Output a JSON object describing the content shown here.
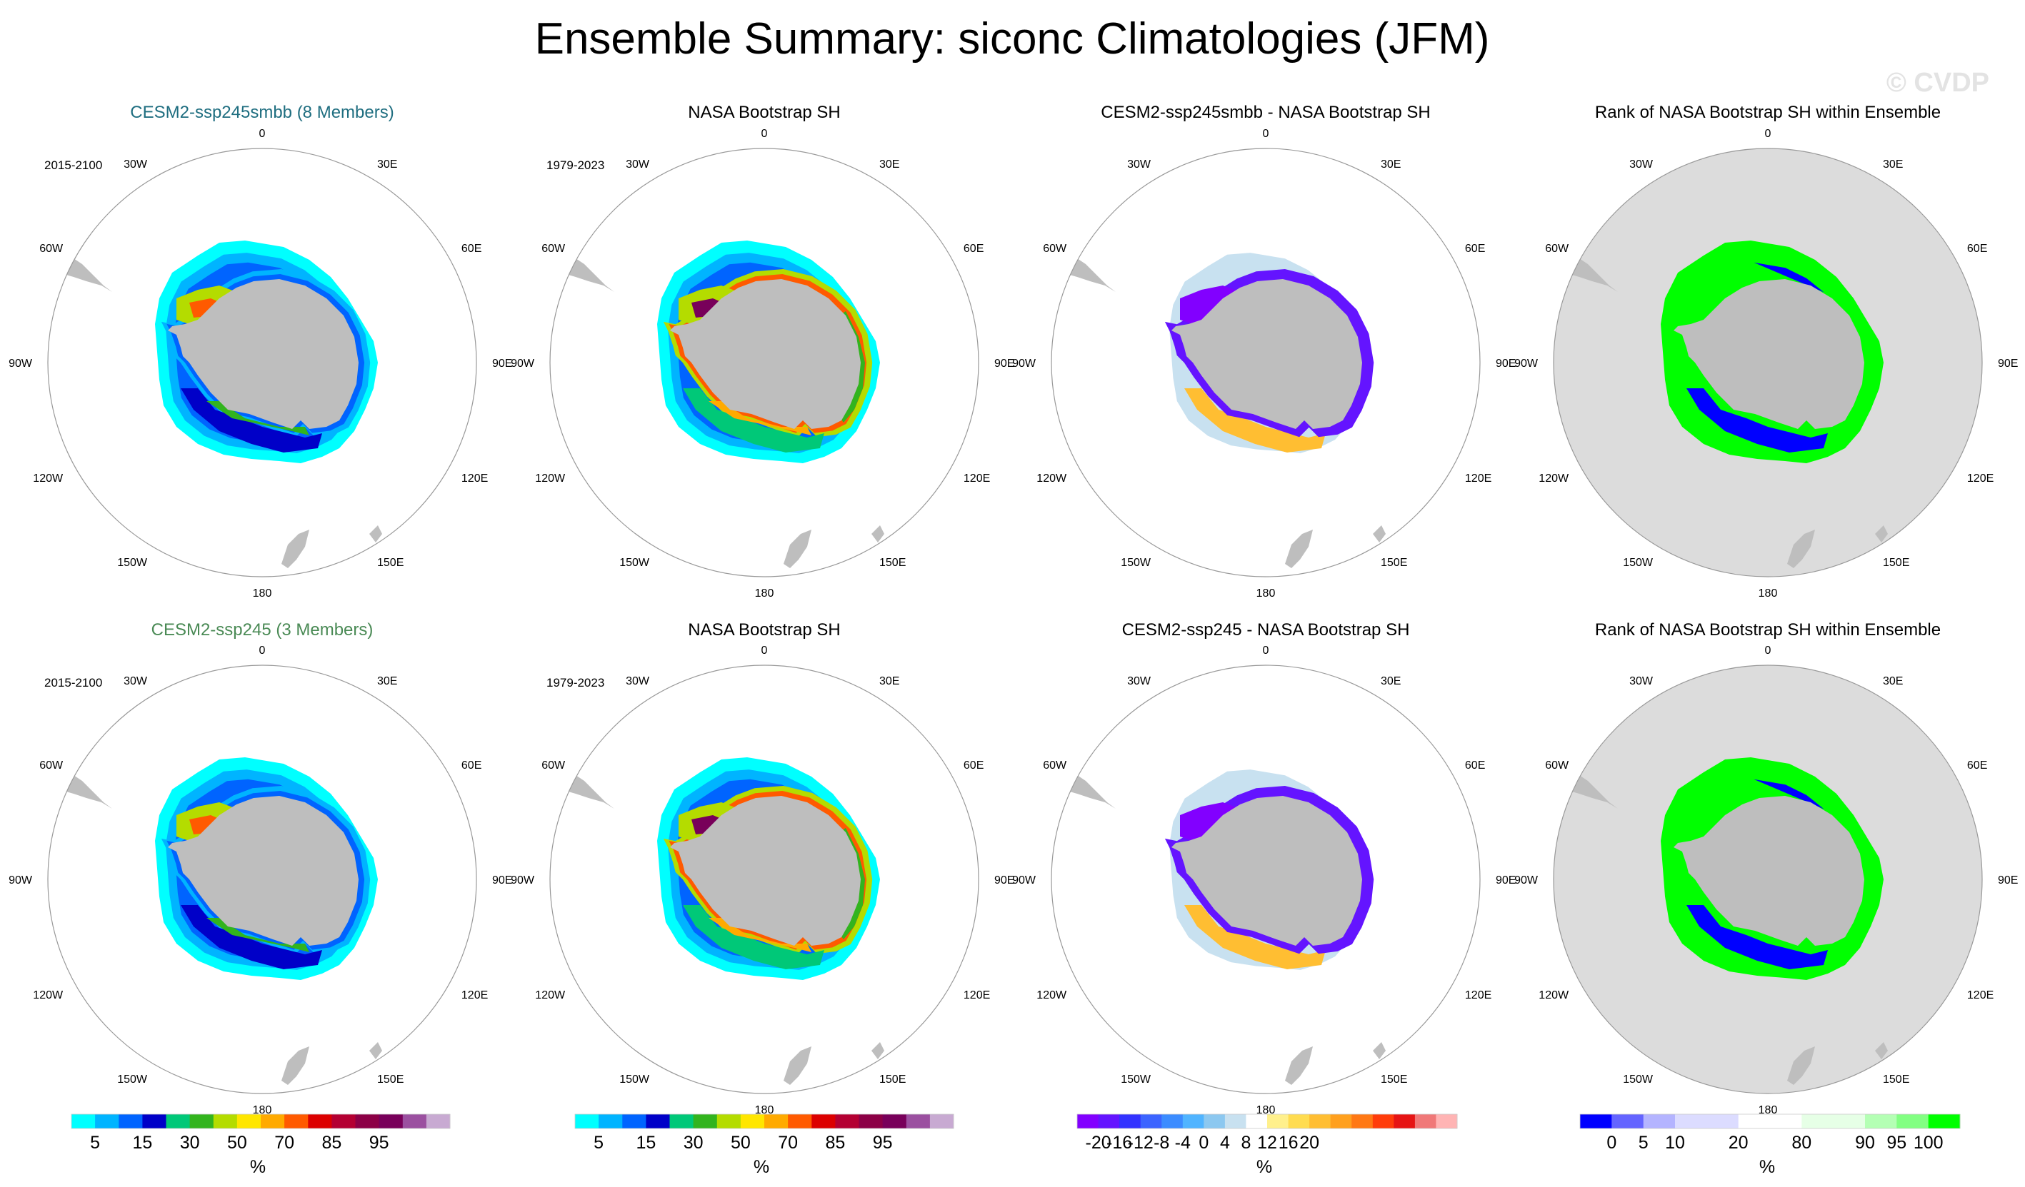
{
  "title": "Ensemble Summary: siconc Climatologies (JFM)",
  "watermark": "© CVDP",
  "colors": {
    "land": "#bebebe",
    "rank_background": "#dcdcdc",
    "title_ssp245smbb": "#1f6e80",
    "title_ssp245": "#4a8a55",
    "title_default": "#000000"
  },
  "chart_data": {
    "type": "polar-map",
    "longitude_labels": [
      "0",
      "30E",
      "60E",
      "90E",
      "120E",
      "150E",
      "180",
      "150W",
      "120W",
      "90W",
      "60W",
      "30W"
    ],
    "panels": [
      {
        "id": "r1c1",
        "title": "CESM2-ssp245smbb (8 Members)",
        "title_color": "title_ssp245smbb",
        "period": "2015-2100",
        "kind": "conc",
        "variant": "model_a"
      },
      {
        "id": "r1c2",
        "title": "NASA Bootstrap SH",
        "title_color": "title_default",
        "period": "1979-2023",
        "kind": "conc",
        "variant": "obs"
      },
      {
        "id": "r1c3",
        "title": "CESM2-ssp245smbb - NASA Bootstrap SH",
        "title_color": "title_default",
        "period": "",
        "kind": "diff",
        "variant": "diff_a"
      },
      {
        "id": "r1c4",
        "title": "Rank of NASA Bootstrap SH within Ensemble",
        "title_color": "title_default",
        "period": "",
        "kind": "rank",
        "variant": "rank_a"
      },
      {
        "id": "r2c1",
        "title": "CESM2-ssp245 (3 Members)",
        "title_color": "title_ssp245",
        "period": "2015-2100",
        "kind": "conc",
        "variant": "model_b"
      },
      {
        "id": "r2c2",
        "title": "NASA Bootstrap SH",
        "title_color": "title_default",
        "period": "1979-2023",
        "kind": "conc",
        "variant": "obs"
      },
      {
        "id": "r2c3",
        "title": "CESM2-ssp245 - NASA Bootstrap SH",
        "title_color": "title_default",
        "period": "",
        "kind": "diff",
        "variant": "diff_b"
      },
      {
        "id": "r2c4",
        "title": "Rank of NASA Bootstrap SH within Ensemble",
        "title_color": "title_default",
        "period": "",
        "kind": "rank",
        "variant": "rank_b"
      }
    ],
    "colorbars": [
      {
        "id": "conc1",
        "unit": "%",
        "colors": [
          "#00ffff",
          "#00b4ff",
          "#0064ff",
          "#0000c8",
          "#00c878",
          "#32b41e",
          "#b4dc00",
          "#ffe600",
          "#ffaa00",
          "#ff5a00",
          "#dc0000",
          "#b40032",
          "#8c0046",
          "#78005a",
          "#9b50a0",
          "#c8aad2"
        ],
        "tick_labels": [
          "5",
          "15",
          "30",
          "50",
          "70",
          "85",
          "95"
        ],
        "tick_positions": [
          1,
          3,
          5,
          7,
          9,
          11,
          13
        ]
      },
      {
        "id": "conc2",
        "unit": "%",
        "colors": [
          "#00ffff",
          "#00b4ff",
          "#0064ff",
          "#0000c8",
          "#00c878",
          "#32b41e",
          "#b4dc00",
          "#ffe600",
          "#ffaa00",
          "#ff5a00",
          "#dc0000",
          "#b40032",
          "#8c0046",
          "#78005a",
          "#9b50a0",
          "#c8aad2"
        ],
        "tick_labels": [
          "5",
          "15",
          "30",
          "50",
          "70",
          "85",
          "95"
        ],
        "tick_positions": [
          1,
          3,
          5,
          7,
          9,
          11,
          13
        ]
      },
      {
        "id": "diff",
        "unit": "%",
        "colors": [
          "#8200ff",
          "#6414ff",
          "#3232ff",
          "#3c64ff",
          "#3c8cff",
          "#50b4ff",
          "#8cc8f0",
          "#c8e1f0",
          "#ffffff",
          "#fff08c",
          "#ffdc50",
          "#ffbe32",
          "#ffa01e",
          "#ff7814",
          "#ff3c0a",
          "#e61414",
          "#f07878",
          "#ffb4b4"
        ],
        "tick_labels": [
          "-20",
          "-16",
          "-12",
          "-8",
          "-4",
          "0",
          "4",
          "8",
          "12",
          "16",
          "20"
        ],
        "tick_positions": [
          1,
          2,
          3,
          4,
          5,
          6,
          7,
          8,
          9,
          10,
          11
        ]
      },
      {
        "id": "rank",
        "unit": "%",
        "colors": [
          "#0000ff",
          "#6464ff",
          "#b4b4ff",
          "#dcdcff",
          "#dcdcff",
          "#ffffff",
          "#ffffff",
          "#e6ffe6",
          "#e6ffe6",
          "#b4ffb4",
          "#82ff82",
          "#00ff00"
        ],
        "tick_labels": [
          "0",
          "5",
          "10",
          "20",
          "80",
          "90",
          "95",
          "100"
        ],
        "tick_positions": [
          1,
          2,
          3,
          5,
          7,
          9,
          10,
          11
        ]
      }
    ]
  }
}
